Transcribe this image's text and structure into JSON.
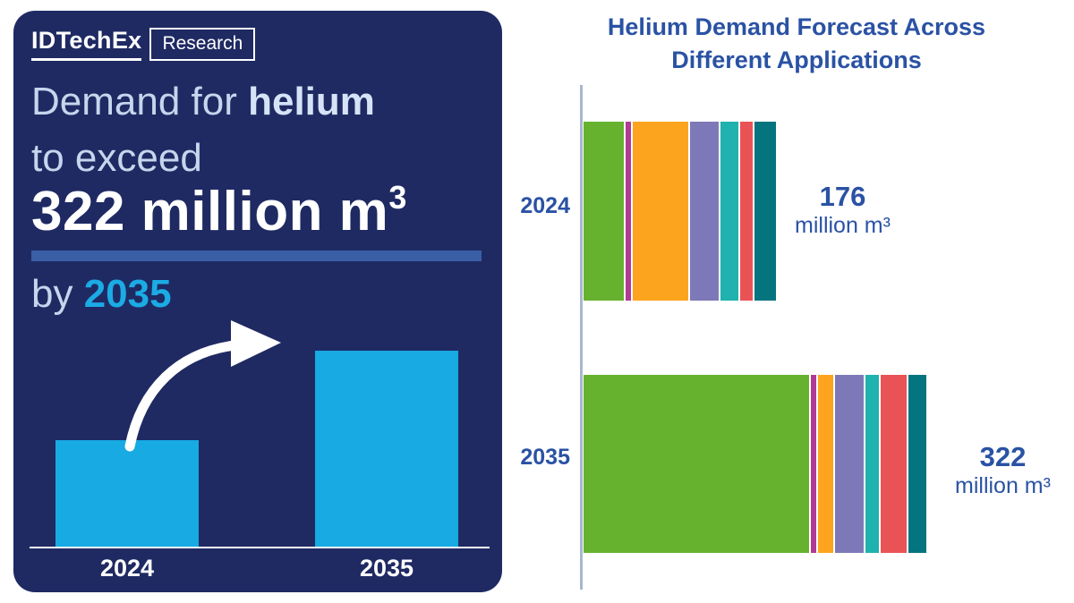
{
  "brand": {
    "logo_text": "IDTechEx",
    "logo_sub": "Research"
  },
  "left_panel": {
    "headline_line1_regular": "Demand for ",
    "headline_line1_bold": "helium",
    "headline_line2": "to exceed",
    "big_value_prefix": "322 million m",
    "big_value_sup": "3",
    "by_regular": "by ",
    "by_bold": "2035",
    "mini_chart": {
      "bar_labels": [
        "2024",
        "2035"
      ],
      "bar_color": "#17aae3",
      "arrow": "curved-up-right-arrow"
    },
    "panel_color": "#1f2a63",
    "divider_color": "#3a5fa7",
    "accent_cyan": "#1babe5"
  },
  "chart": {
    "title_line1": "Helium Demand Forecast Across",
    "title_line2": "Different Applications",
    "title_color": "#2a52a4",
    "axis_color": "#a9b6cf"
  },
  "chart_data": {
    "type": "bar",
    "orientation": "horizontal",
    "stacked": true,
    "title": "Helium Demand Forecast Across Different Applications",
    "categories": [
      "2024",
      "2035"
    ],
    "totals": [
      176,
      322
    ],
    "unit": "million m³",
    "total_labels": [
      {
        "value": "176",
        "unit": "million m³"
      },
      {
        "value": "322",
        "unit": "million m³"
      }
    ],
    "legend": "none",
    "axis": "single vertical baseline at left, no ticks, no gridlines",
    "series": [
      {
        "name": "green",
        "color": "#66b22e",
        "values": [
          39,
          219
        ]
      },
      {
        "name": "magenta",
        "color": "#b13a92",
        "values": [
          5,
          5
        ]
      },
      {
        "name": "orange",
        "color": "#fda41f",
        "values": [
          54,
          15
        ]
      },
      {
        "name": "purple",
        "color": "#7d79b8",
        "values": [
          28,
          28
        ]
      },
      {
        "name": "teal",
        "color": "#1fb2ae",
        "values": [
          17,
          13
        ]
      },
      {
        "name": "red",
        "color": "#e95355",
        "values": [
          12,
          25
        ]
      },
      {
        "name": "dark-teal",
        "color": "#04747f",
        "values": [
          21,
          17
        ]
      }
    ]
  }
}
